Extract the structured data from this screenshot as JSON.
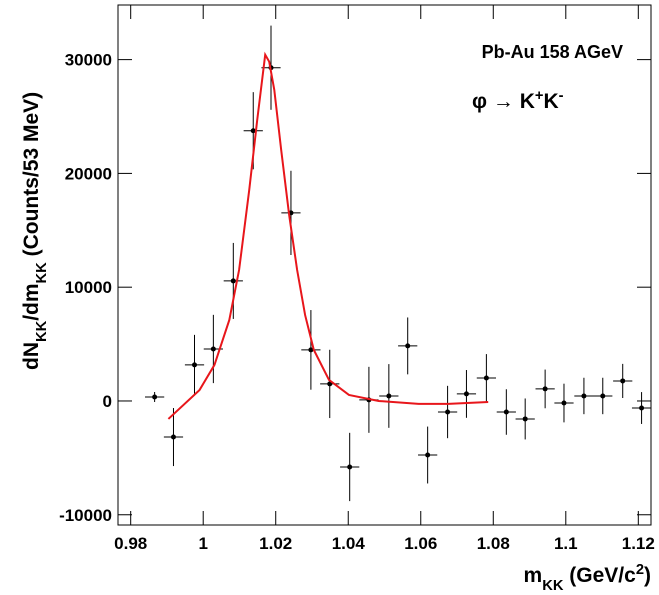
{
  "chart_data": {
    "type": "scatter",
    "annotation": "Pb-Au 158 AGeV",
    "reaction_parts": [
      "φ → K",
      "+",
      "K",
      "-"
    ],
    "xlabel_parts": [
      "m",
      "KK",
      " (GeV/c",
      "2",
      ")"
    ],
    "ylabel_parts": [
      "dN",
      "KK",
      "/dm",
      "KK",
      " (Counts/53 MeV)"
    ],
    "xlim": [
      0.9765,
      1.1235
    ],
    "ylim": [
      -10900,
      34800
    ],
    "xticks": [
      0.98,
      1,
      1.02,
      1.04,
      1.06,
      1.08,
      1.1,
      1.12
    ],
    "yticks": [
      -10000,
      0,
      10000,
      20000,
      30000
    ],
    "points": {
      "color": "#000000",
      "xerr": 0.00265,
      "x": [
        0.9866,
        0.9918,
        0.9976,
        1.0028,
        1.0083,
        1.0138,
        1.0187,
        1.0242,
        1.0297,
        1.0349,
        1.0404,
        1.0457,
        1.0512,
        1.0564,
        1.0619,
        1.0674,
        1.0726,
        1.0781,
        1.0836,
        1.0888,
        1.0943,
        1.0995,
        1.105,
        1.1102,
        1.1157,
        1.1209
      ],
      "values": [
        350,
        -3170,
        3170,
        4570,
        10550,
        23750,
        29290,
        16530,
        4490,
        1500,
        -5800,
        100,
        440,
        4840,
        -4750,
        -970,
        620,
        2020,
        -970,
        -1580,
        1060,
        -180,
        440,
        440,
        1760,
        -620
      ],
      "yerr": [
        440,
        2550,
        2640,
        3000,
        3340,
        3390,
        3700,
        3700,
        3500,
        3000,
        3000,
        2900,
        2800,
        2500,
        2500,
        2300,
        2100,
        2100,
        2000,
        1800,
        1700,
        1700,
        1600,
        1600,
        1500,
        1400
      ]
    },
    "fit": {
      "color": "#e8161b",
      "x": [
        0.9904,
        0.999,
        1.0031,
        1.0072,
        1.0099,
        1.0127,
        1.0149,
        1.0171,
        1.0182,
        1.0196,
        1.0215,
        1.0237,
        1.0259,
        1.0281,
        1.0305,
        1.0347,
        1.0402,
        1.0484,
        1.0594,
        1.0676,
        1.0786
      ],
      "values": [
        -1580,
        970,
        3170,
        7120,
        11520,
        18560,
        24710,
        30430,
        29820,
        27350,
        22080,
        16360,
        11520,
        7560,
        4490,
        1850,
        530,
        0,
        -260,
        -260,
        -90
      ]
    }
  }
}
